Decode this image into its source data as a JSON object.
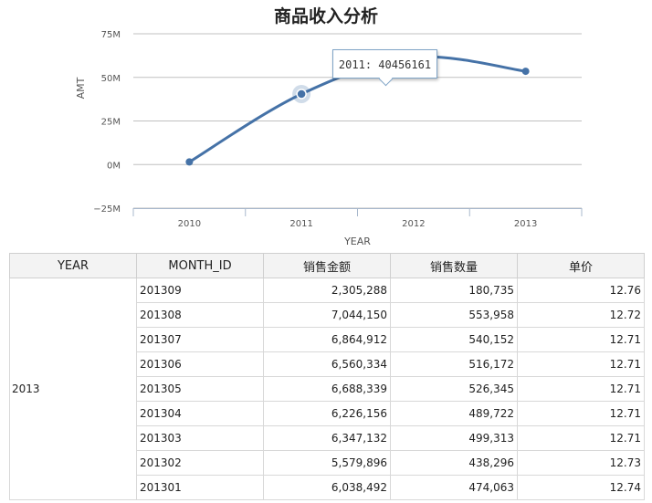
{
  "chart_data": {
    "type": "line",
    "title": "商品收入分析",
    "xlabel": "YEAR",
    "ylabel": "AMT",
    "categories": [
      "2010",
      "2011",
      "2012",
      "2013"
    ],
    "series": [
      {
        "values": [
          1500000,
          40456161,
          61500000,
          53500000
        ]
      }
    ],
    "yticks": [
      "75M",
      "50M",
      "25M",
      "0M",
      "−25M"
    ],
    "ytick_values": [
      75000000,
      50000000,
      25000000,
      0,
      -25000000
    ],
    "ylim": [
      -25000000,
      75000000
    ],
    "grid": true,
    "line_color": "#4572a7",
    "tooltip": {
      "text": "2011: 40456161",
      "category": "2011"
    }
  },
  "table": {
    "headers": [
      "YEAR",
      "MONTH_ID",
      "销售金额",
      "销售数量",
      "单价"
    ],
    "group_year": "2013",
    "rows": [
      [
        "201309",
        "2,305,288",
        "180,735",
        "12.76"
      ],
      [
        "201308",
        "7,044,150",
        "553,958",
        "12.72"
      ],
      [
        "201307",
        "6,864,912",
        "540,152",
        "12.71"
      ],
      [
        "201306",
        "6,560,334",
        "516,172",
        "12.71"
      ],
      [
        "201305",
        "6,688,339",
        "526,345",
        "12.71"
      ],
      [
        "201304",
        "6,226,156",
        "489,722",
        "12.71"
      ],
      [
        "201303",
        "6,347,132",
        "499,313",
        "12.71"
      ],
      [
        "201302",
        "5,579,896",
        "438,296",
        "12.73"
      ],
      [
        "201301",
        "6,038,492",
        "474,063",
        "12.74"
      ]
    ]
  }
}
